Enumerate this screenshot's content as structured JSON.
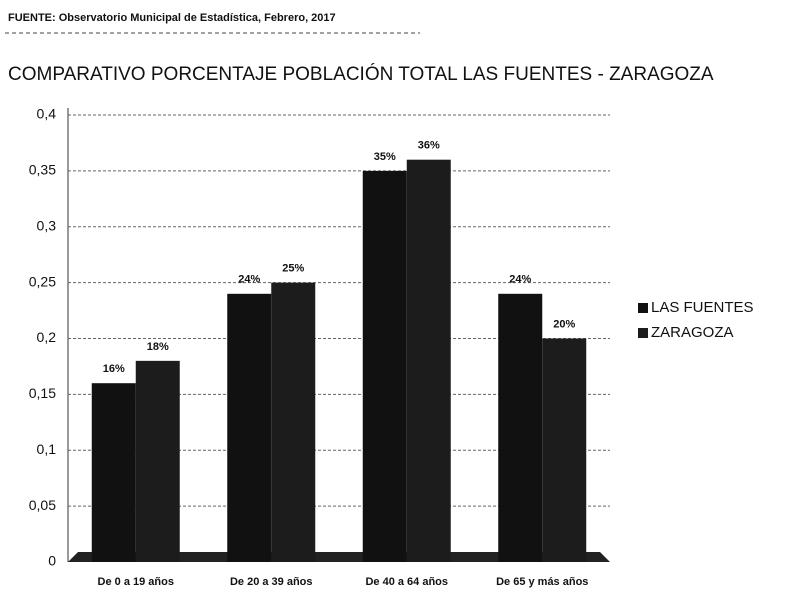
{
  "chart_data": {
    "type": "bar",
    "source": "FUENTE: Observatorio Municipal de Estadística, Febrero, 2017",
    "title": "COMPARATIVO PORCENTAJE POBLACIÓN TOTAL LAS FUENTES - ZARAGOZA",
    "categories": [
      "De 0 a 19 años",
      "De 20 a 39 años",
      "De 40 a 64 años",
      "De 65 y más años"
    ],
    "series": [
      {
        "name": "LAS FUENTES",
        "color": "#111111",
        "values": [
          0.16,
          0.24,
          0.35,
          0.24
        ],
        "value_labels": [
          "16%",
          "24%",
          "35%",
          "24%"
        ]
      },
      {
        "name": "ZARAGOZA",
        "color": "#1c1c1c",
        "values": [
          0.18,
          0.25,
          0.36,
          0.2
        ],
        "value_labels": [
          "18%",
          "25%",
          "36%",
          "20%"
        ]
      }
    ],
    "ylim": [
      0,
      0.4
    ],
    "yticks": [
      0,
      {
        "value": 0.05,
        "label": "0,05"
      },
      {
        "value": 0.1,
        "label": "0,1"
      },
      {
        "value": 0.15,
        "label": "0,15"
      },
      {
        "value": 0.2,
        "label": "0,2"
      },
      {
        "value": 0.25,
        "label": "0,25"
      },
      {
        "value": 0.3,
        "label": "0,3"
      },
      {
        "value": 0.35,
        "label": "0,35"
      },
      {
        "value": 0.4,
        "label": "0,4"
      }
    ],
    "grid": true,
    "legend": "right"
  }
}
